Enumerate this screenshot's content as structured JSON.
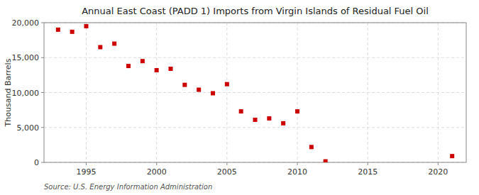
{
  "chart_data": {
    "type": "scatter",
    "title": "Annual East Coast (PADD 1) Imports from Virgin Islands of Residual Fuel Oil",
    "y_label": "Thousand Barrels",
    "annotations": [
      "Source: U.S. Energy Information Administration"
    ],
    "x": [
      1993,
      1994,
      1995,
      1996,
      1997,
      1998,
      1999,
      2000,
      2001,
      2002,
      2003,
      2004,
      2005,
      2006,
      2007,
      2008,
      2009,
      2010,
      2011,
      2012,
      2021
    ],
    "values": [
      19000,
      18700,
      19500,
      16500,
      17000,
      13800,
      14500,
      13200,
      13400,
      11100,
      10400,
      9900,
      11200,
      7300,
      6100,
      6300,
      5600,
      7300,
      2200,
      150,
      900
    ],
    "color": "#cc0000",
    "marker": "square",
    "xlim": [
      1992,
      2022
    ],
    "ylim": [
      0,
      20000
    ],
    "xticks": [
      1995,
      2000,
      2005,
      2010,
      2015,
      2020
    ],
    "yticks": [
      0,
      {
        "value": 5000,
        "label": "5,000"
      },
      {
        "value": 10000,
        "label": "10,000"
      },
      {
        "value": 15000,
        "label": "15,000"
      },
      {
        "value": 20000,
        "label": "20,000"
      }
    ],
    "grid": true
  }
}
